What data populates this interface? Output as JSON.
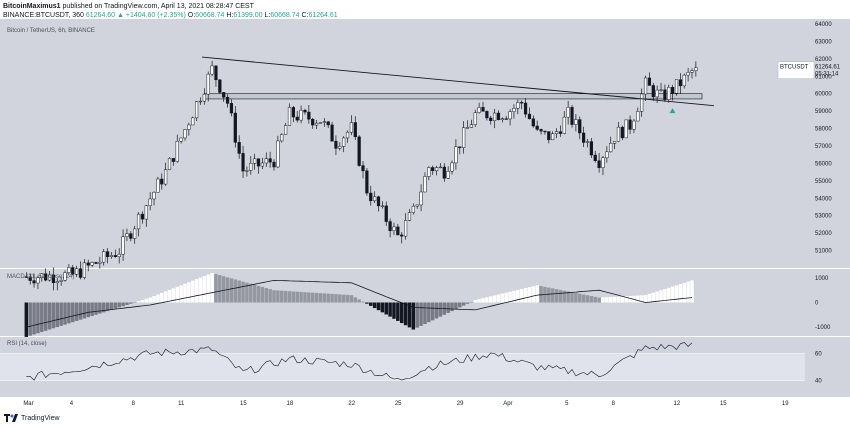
{
  "header": {
    "line1_author": "BitcoinMaximus1",
    "line1_rest": "published on TradingView.com, April 13, 2021 08:28:47 CEST",
    "symbol_line": "BINANCE:BTCUSDT, 360",
    "change": "61264.60 ▲ +1404.60 (+2.35%)",
    "o_label": "O:",
    "o_value": "60668.74",
    "h_label": "H:",
    "h_value": "61399.00",
    "l_label": "L:",
    "l_value": "60668.74",
    "c_label": "C:",
    "c_value": "61264.61"
  },
  "footer": {
    "brand": "TradingView"
  },
  "colors": {
    "background": "#d1d4dc",
    "up_candle": "#ffffff",
    "down_candle": "#131722",
    "line": "#131722",
    "hist_pos_strong": "#ffffff",
    "hist_pos_weak": "#9598a1",
    "hist_neg_strong": "#131722",
    "hist_neg_weak": "#787b86",
    "signal": "#26a69a",
    "rsi_band": "#e0e3eb"
  },
  "chart_data": [
    {
      "type": "candlestick",
      "title": "Bitcoin / TetherUS, 6h, BINANCE",
      "price_label": "BTCUSDT",
      "last_price": "61264.61",
      "countdown": "05:31:14",
      "ylim": [
        50000,
        64000
      ],
      "y_ticks": [
        "64000",
        "63000",
        "62000",
        "61000",
        "60000",
        "59000",
        "58000",
        "57000",
        "56000",
        "55000",
        "54000",
        "53000",
        "52000",
        "51000"
      ],
      "x_ticks": [
        "Mar",
        "4",
        "8",
        "11",
        "15",
        "18",
        "22",
        "25",
        "29",
        "Apr",
        "5",
        "8",
        "12",
        "15",
        "19"
      ],
      "anchors": [
        {
          "date": "Mar 1",
          "price": 49500
        },
        {
          "date": "Mar 4",
          "price": 49600
        },
        {
          "date": "Mar 7",
          "price": 51000
        },
        {
          "date": "Mar 10",
          "price": 55500
        },
        {
          "date": "Mar 13",
          "price": 61400
        },
        {
          "date": "Mar 14",
          "price": 59500
        },
        {
          "date": "Mar 15",
          "price": 55600
        },
        {
          "date": "Mar 17",
          "price": 56200
        },
        {
          "date": "Mar 18",
          "price": 58800
        },
        {
          "date": "Mar 20",
          "price": 58500
        },
        {
          "date": "Mar 21",
          "price": 57200
        },
        {
          "date": "Mar 22",
          "price": 58000
        },
        {
          "date": "Mar 23",
          "price": 54500
        },
        {
          "date": "Mar 25",
          "price": 51800
        },
        {
          "date": "Mar 26",
          "price": 53200
        },
        {
          "date": "Mar 27",
          "price": 55800
        },
        {
          "date": "Mar 28",
          "price": 55600
        },
        {
          "date": "Mar 30",
          "price": 58800
        },
        {
          "date": "Apr 1",
          "price": 58900
        },
        {
          "date": "Apr 2",
          "price": 59500
        },
        {
          "date": "Apr 3",
          "price": 57700
        },
        {
          "date": "Apr 4",
          "price": 57500
        },
        {
          "date": "Apr 5",
          "price": 58800
        },
        {
          "date": "Apr 7",
          "price": 56200
        },
        {
          "date": "Apr 8",
          "price": 57600
        },
        {
          "date": "Apr 9",
          "price": 58200
        },
        {
          "date": "Apr 10",
          "price": 60500
        },
        {
          "date": "Apr 11",
          "price": 59800
        },
        {
          "date": "Apr 12",
          "price": 60400
        },
        {
          "date": "Apr 13",
          "price": 61265
        }
      ],
      "trendline": {
        "from": {
          "date": "Mar 13",
          "price": 62100
        },
        "to": {
          "date": "Apr 13",
          "price": 59200
        }
      },
      "resistance_zone": [
        59700,
        60000
      ],
      "signal_marker": {
        "date": "Apr 12",
        "price": 59000
      }
    },
    {
      "type": "histogram+line",
      "title": "MACD (21, 50, close, 24)",
      "ylim": [
        -1200,
        1200
      ],
      "y_ticks": [
        "1000",
        "0",
        "-1000"
      ],
      "anchors": [
        {
          "date": "Mar 1",
          "macd": -1400,
          "signal": -1000
        },
        {
          "date": "Mar 5",
          "macd": -600,
          "signal": -400
        },
        {
          "date": "Mar 9",
          "macd": 200,
          "signal": -100
        },
        {
          "date": "Mar 13",
          "macd": 1200,
          "signal": 400
        },
        {
          "date": "Mar 17",
          "macd": 500,
          "signal": 900
        },
        {
          "date": "Mar 22",
          "macd": 300,
          "signal": 800
        },
        {
          "date": "Mar 26",
          "macd": -1100,
          "signal": -200
        },
        {
          "date": "Mar 30",
          "macd": 100,
          "signal": -300
        },
        {
          "date": "Apr 3",
          "macd": 700,
          "signal": 300
        },
        {
          "date": "Apr 7",
          "macd": 200,
          "signal": 500
        },
        {
          "date": "Apr 10",
          "macd": 300,
          "signal": 0
        },
        {
          "date": "Apr 13",
          "macd": 900,
          "signal": 200
        }
      ]
    },
    {
      "type": "line",
      "title": "RSI (14, close)",
      "ylim": [
        30,
        70
      ],
      "band": [
        40,
        60
      ],
      "y_ticks": [
        "60",
        "40"
      ],
      "anchors": [
        {
          "date": "Mar 1",
          "rsi": 42
        },
        {
          "date": "Mar 5",
          "rsi": 50
        },
        {
          "date": "Mar 9",
          "rsi": 60
        },
        {
          "date": "Mar 13",
          "rsi": 63
        },
        {
          "date": "Mar 15",
          "rsi": 46
        },
        {
          "date": "Mar 18",
          "rsi": 56
        },
        {
          "date": "Mar 22",
          "rsi": 52
        },
        {
          "date": "Mar 25",
          "rsi": 40
        },
        {
          "date": "Mar 27",
          "rsi": 50
        },
        {
          "date": "Mar 31",
          "rsi": 60
        },
        {
          "date": "Apr 3",
          "rsi": 50
        },
        {
          "date": "Apr 7",
          "rsi": 44
        },
        {
          "date": "Apr 10",
          "rsi": 64
        },
        {
          "date": "Apr 13",
          "rsi": 66
        }
      ]
    }
  ]
}
